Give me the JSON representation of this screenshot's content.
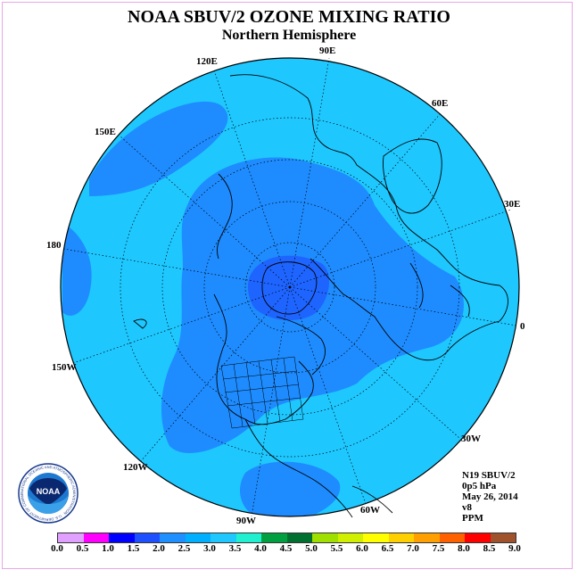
{
  "title": "NOAA SBUV/2 OZONE MIXING RATIO",
  "subtitle": "Northern Hemisphere",
  "longitude_labels": [
    "90E",
    "60E",
    "30E",
    "0",
    "30W",
    "60W",
    "90W",
    "120W",
    "150W",
    "180",
    "150E",
    "120E"
  ],
  "info": {
    "instrument": "N19 SBUV/2",
    "level": "0p5 hPa",
    "date": "May 26, 2014",
    "version": "v8",
    "units": "PPM"
  },
  "logo_text": "NOAA",
  "logo_ring_text": "NATIONAL OCEANIC AND ATMOSPHERIC ADMINISTRATION · U.S. DEPARTMENT OF COMMERCE",
  "colorbar": {
    "ticks": [
      "0.0",
      "0.5",
      "1.0",
      "1.5",
      "2.0",
      "2.5",
      "3.0",
      "3.5",
      "4.0",
      "4.5",
      "5.0",
      "5.5",
      "6.0",
      "6.5",
      "7.0",
      "7.5",
      "8.0",
      "8.5",
      "9.0"
    ],
    "colors": [
      "#c080ff",
      "#e0a0ff",
      "#ff00ff",
      "#0000ff",
      "#1e50ff",
      "#1e90ff",
      "#00b0ff",
      "#1ec8ff",
      "#20f0d0",
      "#00a040",
      "#007030",
      "#a0e000",
      "#d0f000",
      "#ffff00",
      "#ffd000",
      "#ffa000",
      "#ff6000",
      "#ff0000",
      "#a0522d"
    ]
  },
  "map_colors": {
    "ocean_base": "#1ec8ff",
    "band_2_5": "#1e90ff",
    "band_2_0": "#1e70ff",
    "coast": "#000000"
  }
}
